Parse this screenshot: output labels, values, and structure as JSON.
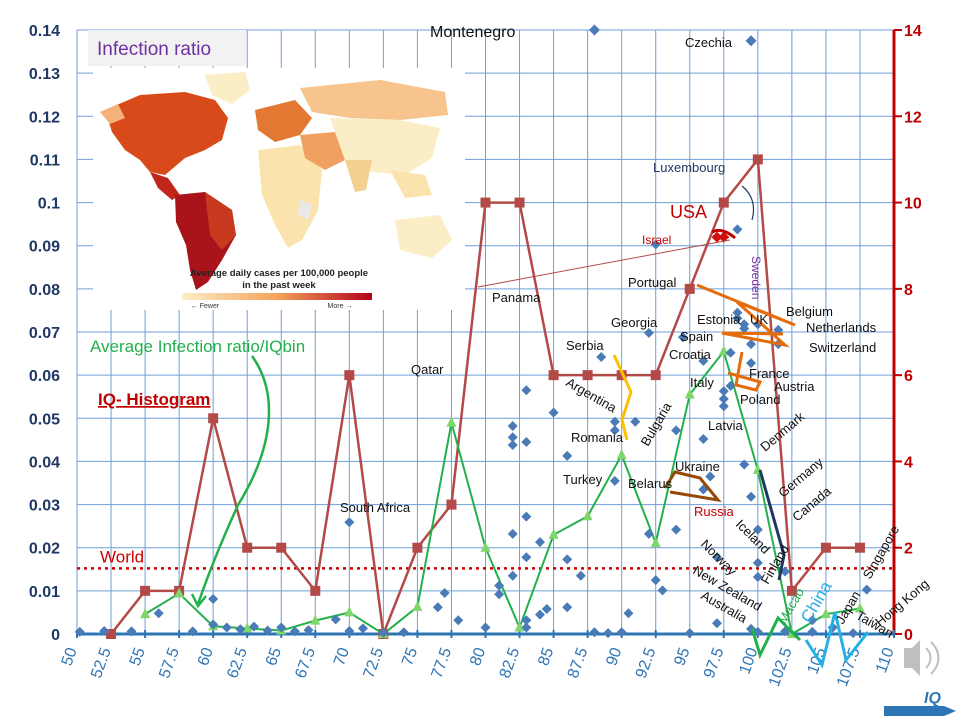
{
  "chart_data": {
    "type": "scatter",
    "title": "Infection ratio",
    "colors": {
      "grid": "#6f9fd8",
      "scatter": "#4a7bb7",
      "histogram": "#b34a48",
      "average": "#22b04c",
      "world": "#cc0000",
      "left_axis": "#1f3763",
      "right_axis": "#c00000",
      "x_axis": "#2e75b6"
    },
    "x_axis": {
      "label": "IQ",
      "range": [
        50,
        110
      ],
      "ticks": [
        "50",
        "52.5",
        "55",
        "57.5",
        "60",
        "62.5",
        "65",
        "67.5",
        "70",
        "72.5",
        "75",
        "77.5",
        "80",
        "82.5",
        "85",
        "87.5",
        "90",
        "92.5",
        "95",
        "97.5",
        "100",
        "102.5",
        "105",
        "107.5",
        "110"
      ]
    },
    "y_axis_left": {
      "label": "",
      "range": [
        0,
        0.14
      ],
      "ticks": [
        "0",
        "0.01",
        "0.02",
        "0.03",
        "0.04",
        "0.05",
        "0.06",
        "0.07",
        "0.08",
        "0.09",
        "0.1",
        "0.11",
        "0.12",
        "0.13",
        "0.14"
      ]
    },
    "y_axis_right": {
      "label": "",
      "range": [
        0,
        14
      ],
      "ticks": [
        "0",
        "2",
        "4",
        "6",
        "8",
        "10",
        "12",
        "14"
      ]
    },
    "world_line": {
      "label": "World",
      "value": 0.0152
    },
    "series": [
      {
        "name": "IQ- Histogram",
        "kind": "line",
        "axis": "right",
        "points": [
          [
            52.5,
            0
          ],
          [
            55,
            1
          ],
          [
            57.5,
            1
          ],
          [
            60,
            5
          ],
          [
            62.5,
            2
          ],
          [
            65,
            2
          ],
          [
            67.5,
            1
          ],
          [
            70,
            6
          ],
          [
            72.5,
            0
          ],
          [
            75,
            2
          ],
          [
            77.5,
            3
          ],
          [
            80,
            10
          ],
          [
            82.5,
            10
          ],
          [
            85,
            6
          ],
          [
            87.5,
            6
          ],
          [
            90,
            6
          ],
          [
            92.5,
            6
          ],
          [
            95,
            8
          ],
          [
            97.5,
            10
          ],
          [
            100,
            11
          ],
          [
            102.5,
            1
          ],
          [
            105,
            2
          ],
          [
            107.5,
            2
          ]
        ]
      },
      {
        "name": "Average Infection ratio/IQbin",
        "kind": "line",
        "axis": "left",
        "points": [
          [
            55,
            0.0046
          ],
          [
            57.5,
            0.0094
          ],
          [
            60,
            0.0018
          ],
          [
            62.5,
            0.0013
          ],
          [
            65,
            0.0008
          ],
          [
            67.5,
            0.0031
          ],
          [
            70,
            0.005
          ],
          [
            72.5,
            0
          ],
          [
            75,
            0.0063
          ],
          [
            77.5,
            0.049
          ],
          [
            80,
            0.02
          ],
          [
            82.5,
            0.0015
          ],
          [
            85,
            0.023
          ],
          [
            87.5,
            0.0273
          ],
          [
            90,
            0.0415
          ],
          [
            92.5,
            0.0211
          ],
          [
            95,
            0.0555
          ],
          [
            97.5,
            0.0655
          ],
          [
            100,
            0.038
          ],
          [
            102.5,
            0
          ],
          [
            105,
            0.0046
          ],
          [
            107.5,
            0.0059
          ]
        ]
      },
      {
        "name": "Countries",
        "kind": "scatter",
        "axis": "left",
        "points": [
          [
            50.2,
            0.0005
          ],
          [
            52,
            0.0007
          ],
          [
            54,
            0.0006
          ],
          [
            56,
            0.0048
          ],
          [
            58.5,
            0.0006
          ],
          [
            60,
            0.0081
          ],
          [
            60,
            0.0022
          ],
          [
            61,
            0.0015
          ],
          [
            62,
            0.0011
          ],
          [
            63,
            0.0017
          ],
          [
            64,
            0.0008
          ],
          [
            65,
            0.0015
          ],
          [
            66,
            0.0006
          ],
          [
            67,
            0.0009
          ],
          [
            69,
            0.0034
          ],
          [
            70,
            0.0259
          ],
          [
            70,
            0.0007
          ],
          [
            71,
            0.0013
          ],
          [
            72.5,
            0.0003
          ],
          [
            74,
            0.0004
          ],
          [
            76.5,
            0.0062
          ],
          [
            77,
            0.0095
          ],
          [
            78,
            0.0032
          ],
          [
            80,
            0.0015
          ],
          [
            81,
            0.0112
          ],
          [
            81,
            0.0092
          ],
          [
            82,
            0.0135
          ],
          [
            82,
            0.0232
          ],
          [
            82,
            0.0438
          ],
          [
            82,
            0.0456
          ],
          [
            82,
            0.0482
          ],
          [
            83,
            0.0032
          ],
          [
            83,
            0.0015
          ],
          [
            83,
            0.0445
          ],
          [
            83,
            0.0565
          ],
          [
            83,
            0.0272
          ],
          [
            83,
            0.0178
          ],
          [
            84,
            0.0045
          ],
          [
            84,
            0.0213
          ],
          [
            84.5,
            0.0058
          ],
          [
            85,
            0.0513
          ],
          [
            86,
            0.0413
          ],
          [
            86,
            0.0062
          ],
          [
            86,
            0.0173
          ],
          [
            87,
            0.0135
          ],
          [
            88,
            0.0004
          ],
          [
            89,
            0.0002
          ],
          [
            90,
            0.0004
          ],
          [
            90.5,
            0.0048
          ],
          [
            91,
            0.0492
          ],
          [
            92,
            0.0698
          ],
          [
            92,
            0.0232
          ],
          [
            92.5,
            0.0125
          ],
          [
            93,
            0.0101
          ],
          [
            94,
            0.0472
          ],
          [
            94,
            0.0242
          ],
          [
            95,
            0.0002
          ],
          [
            96,
            0.0335
          ],
          [
            97,
            0.0025
          ],
          [
            97,
            0.0178
          ],
          [
            99,
            0.0393
          ],
          [
            99.5,
            0.0318
          ],
          [
            99.5,
            0.0012
          ],
          [
            100,
            0.0242
          ],
          [
            100,
            0.0165
          ],
          [
            100,
            0.0132
          ],
          [
            100,
            0.0005
          ],
          [
            102,
            0.0145
          ],
          [
            102,
            0.0006
          ],
          [
            104,
            0.0032
          ],
          [
            104,
            0.0005
          ],
          [
            105.5,
            0.0015
          ],
          [
            107,
            0.0002
          ],
          [
            108,
            0.0103
          ],
          [
            92.5,
            0.0903
          ],
          [
            94.5,
            0.0688
          ],
          [
            96,
            0.0633
          ],
          [
            96,
            0.0452
          ],
          [
            96.5,
            0.0365
          ],
          [
            97.5,
            0.0563
          ],
          [
            97.5,
            0.0545
          ],
          [
            97.5,
            0.0528
          ],
          [
            98,
            0.0652
          ],
          [
            98,
            0.0575
          ],
          [
            98.5,
            0.0745
          ],
          [
            98.5,
            0.0732
          ],
          [
            98.5,
            0.0938
          ],
          [
            99,
            0.0718
          ],
          [
            99,
            0.0708
          ],
          [
            99.5,
            0.0672
          ],
          [
            99.5,
            0.0628
          ],
          [
            100,
            0.0718
          ],
          [
            101.5,
            0.0705
          ],
          [
            101.5,
            0.0672
          ],
          [
            88.5,
            0.0642
          ],
          [
            89.5,
            0.0492
          ],
          [
            89.5,
            0.0472
          ],
          [
            89.5,
            0.0355
          ]
        ]
      },
      {
        "name": "Highlighted countries",
        "kind": "scatter",
        "axis": "left",
        "points": [
          {
            "label": "Montenegro",
            "x": 88,
            "y": 0.14
          },
          {
            "label": "Czechia",
            "x": 99.5,
            "y": 0.1375
          },
          {
            "label": "Israel",
            "x": 97,
            "y": 0.092
          },
          {
            "label": "USA",
            "x": 97.5,
            "y": 0.092
          },
          {
            "label": "Panama",
            "x": 78,
            "y": 0.0805
          }
        ]
      }
    ],
    "country_labels": [
      "Montenegro",
      "Czechia",
      "Luxembourg",
      "USA",
      "Israel",
      "Sweden",
      "Panama",
      "Portugal",
      "Belgium",
      "Netherlands",
      "Switzerland",
      "Estonia",
      "Georgia",
      "Spain",
      "Serbia",
      "Croatia",
      "UK",
      "Qatar",
      "France",
      "Italy",
      "Austria",
      "Poland",
      "Argentina",
      "Bulgaria",
      "Latvia",
      "Romania",
      "Denmark",
      "Ukraine",
      "Germany",
      "Turkey",
      "Belarus",
      "Canada",
      "Russia",
      "South Africa",
      "Iceland",
      "Finland",
      "Norway",
      "New Zealand",
      "Macao",
      "China",
      "Australia",
      "Japan",
      "Singapore",
      "Taiwan",
      "Hong Kong"
    ],
    "legend": {
      "histogram": "IQ- Histogram",
      "average": "Average Infection ratio/IQbin"
    },
    "inset_map": {
      "caption_line1": "Average daily cases per 100,000 people",
      "caption_line2": "in the past week",
      "fewer": "← Fewer",
      "more": "More →"
    },
    "corner_label": "IQ"
  }
}
